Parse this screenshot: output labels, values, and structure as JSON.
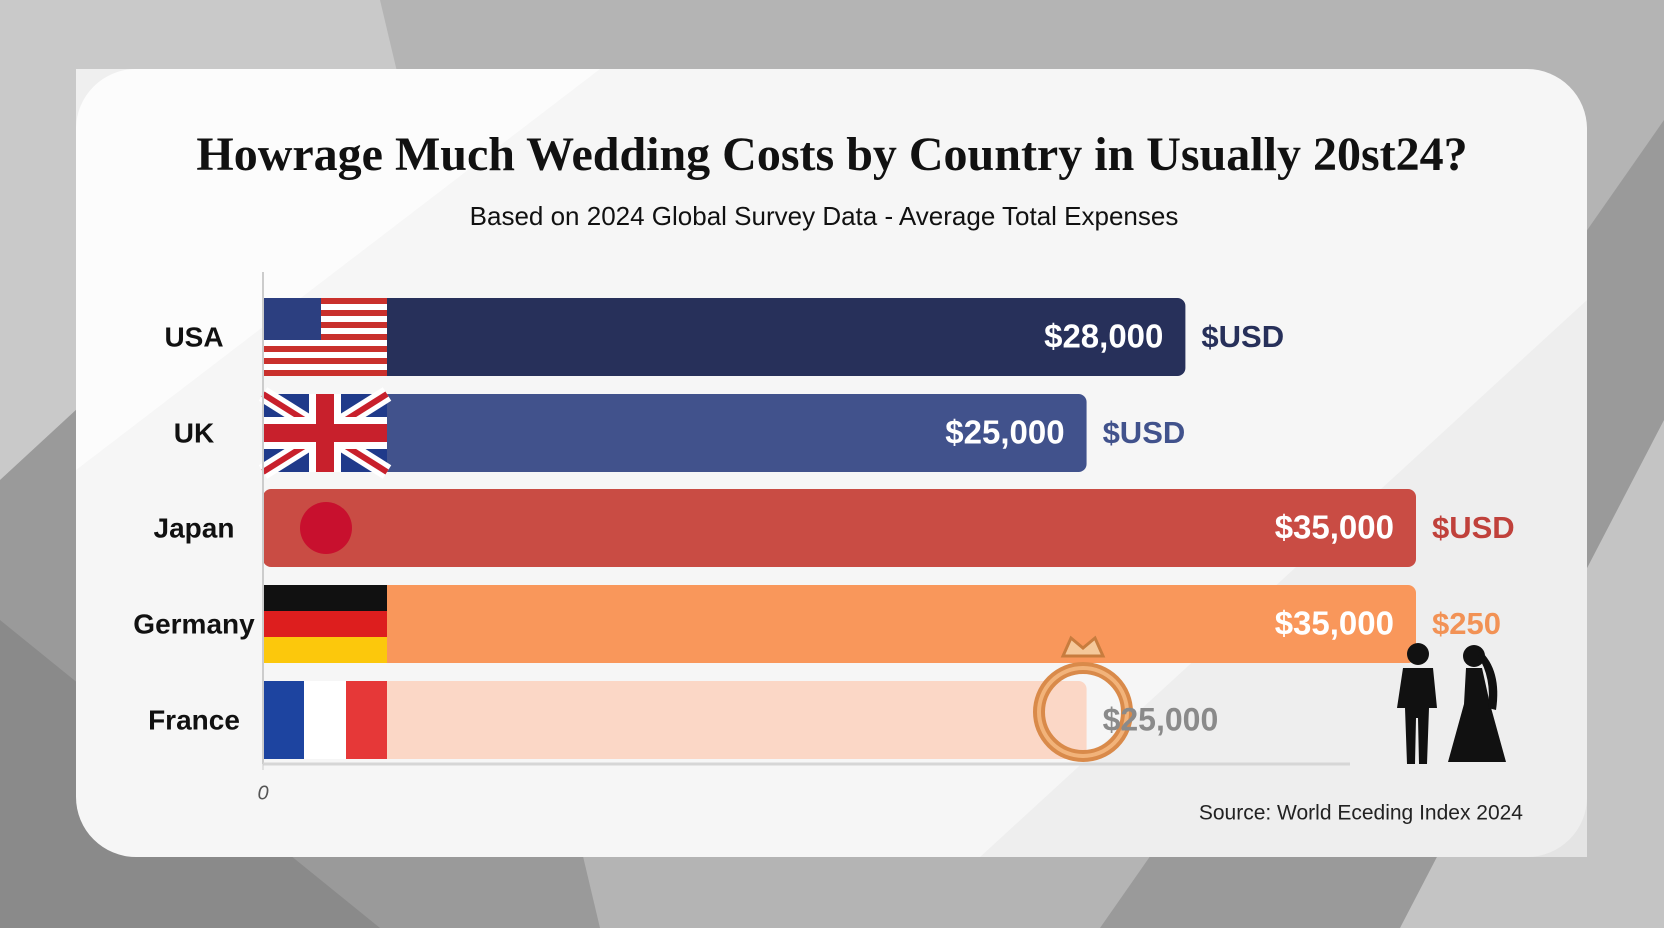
{
  "chart_data": {
    "type": "bar",
    "title": "Howrage Much Wedding Costs by Country in Usually 20st24?",
    "subtitle": "Based on 2024 Global Survey Data - Average Total Expenses",
    "categories": [
      "USA",
      "UK",
      "Japan",
      "Germany",
      "France"
    ],
    "values": [
      28000,
      25000,
      35000,
      35000,
      25000
    ],
    "value_labels": [
      "$28,000",
      "$25,000",
      "$35,000",
      "$35,000",
      "$25,000"
    ],
    "unit_labels": [
      "$USD",
      "$USD",
      "$USD",
      "$250",
      null
    ],
    "colors": [
      "#27305a",
      "#41528c",
      "#c94c44",
      "#f9975b",
      "#fbd7c6"
    ],
    "unit_label_colors": [
      "#27305a",
      "#41528c",
      "#c0413b",
      "#f29255",
      null
    ],
    "xlim": [
      0,
      35000
    ],
    "xticks": [
      0
    ],
    "source": "Source: World Eceding Index 2024"
  }
}
